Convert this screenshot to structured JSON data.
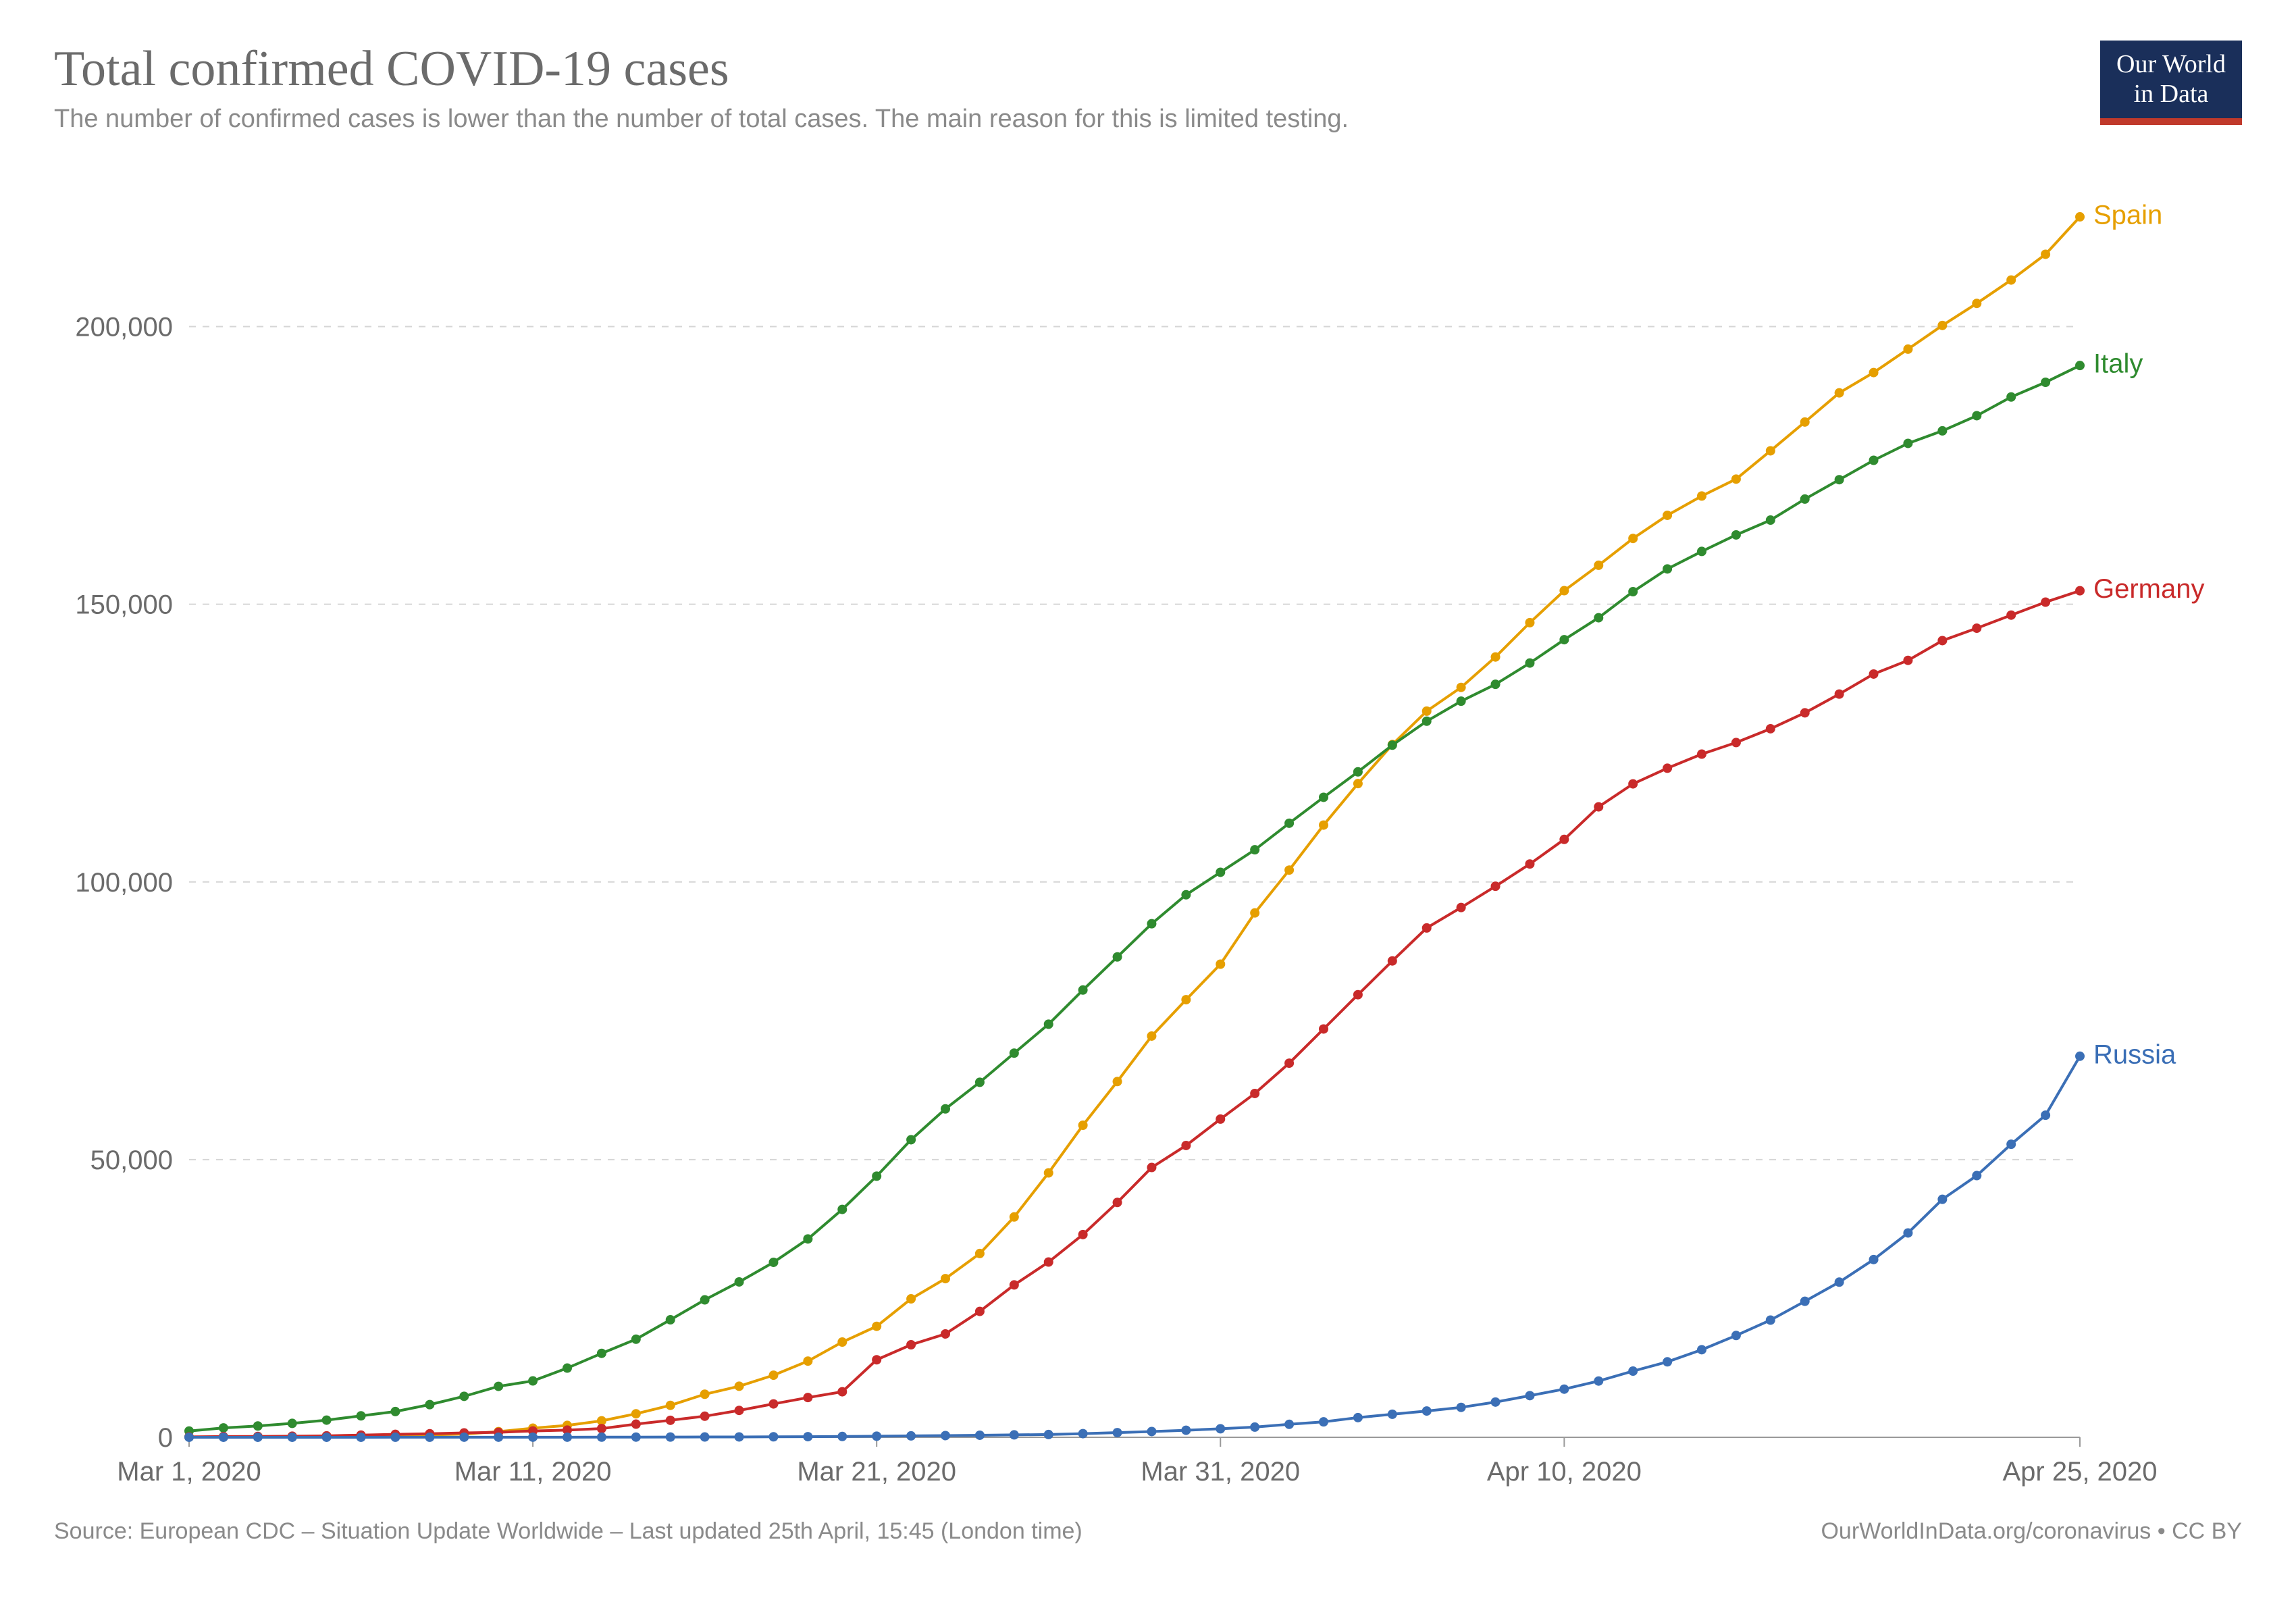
{
  "header": {
    "title": "Total confirmed COVID-19 cases",
    "subtitle": "The number of confirmed cases is lower than the number of total cases. The main reason for this is limited testing.",
    "logo_line1": "Our World",
    "logo_line2": "in Data"
  },
  "footer": {
    "source": "Source: European CDC – Situation Update Worldwide – Last updated 25th April, 15:45 (London time)",
    "attribution": "OurWorldInData.org/coronavirus • CC BY"
  },
  "chart": {
    "type": "line",
    "background_color": "#ffffff",
    "grid_color": "#d6d6d6",
    "axis_color": "#9a9a9a",
    "line_width": 4,
    "marker_radius": 7,
    "y_axis": {
      "min": 0,
      "max": 225000,
      "ticks": [
        {
          "value": 0,
          "label": "0"
        },
        {
          "value": 50000,
          "label": "50,000"
        },
        {
          "value": 100000,
          "label": "100,000"
        },
        {
          "value": 150000,
          "label": "150,000"
        },
        {
          "value": 200000,
          "label": "200,000"
        }
      ],
      "label_fontsize": 40,
      "label_color": "#6b6b6b"
    },
    "x_axis": {
      "min": 0,
      "max": 55,
      "ticks": [
        {
          "value": 0,
          "label": "Mar 1, 2020"
        },
        {
          "value": 10,
          "label": "Mar 11, 2020"
        },
        {
          "value": 20,
          "label": "Mar 21, 2020"
        },
        {
          "value": 30,
          "label": "Mar 31, 2020"
        },
        {
          "value": 40,
          "label": "Apr 10, 2020"
        },
        {
          "value": 55,
          "label": "Apr 25, 2020"
        }
      ],
      "label_fontsize": 40,
      "label_color": "#6b6b6b"
    },
    "series": [
      {
        "name": "Spain",
        "color": "#e69f00",
        "label": "Spain",
        "points": [
          {
            "x": 0,
            "y": 45
          },
          {
            "x": 1,
            "y": 83
          },
          {
            "x": 2,
            "y": 114
          },
          {
            "x": 3,
            "y": 151
          },
          {
            "x": 4,
            "y": 198
          },
          {
            "x": 5,
            "y": 257
          },
          {
            "x": 6,
            "y": 374
          },
          {
            "x": 7,
            "y": 430
          },
          {
            "x": 8,
            "y": 589
          },
          {
            "x": 9,
            "y": 1024
          },
          {
            "x": 10,
            "y": 1639
          },
          {
            "x": 11,
            "y": 2140
          },
          {
            "x": 12,
            "y": 2965
          },
          {
            "x": 13,
            "y": 4231
          },
          {
            "x": 14,
            "y": 5753
          },
          {
            "x": 15,
            "y": 7753
          },
          {
            "x": 16,
            "y": 9191
          },
          {
            "x": 17,
            "y": 11178
          },
          {
            "x": 18,
            "y": 13716
          },
          {
            "x": 19,
            "y": 17147
          },
          {
            "x": 20,
            "y": 19980
          },
          {
            "x": 21,
            "y": 24926
          },
          {
            "x": 22,
            "y": 28572
          },
          {
            "x": 23,
            "y": 33089
          },
          {
            "x": 24,
            "y": 39673
          },
          {
            "x": 25,
            "y": 47610
          },
          {
            "x": 26,
            "y": 56188
          },
          {
            "x": 27,
            "y": 64059
          },
          {
            "x": 28,
            "y": 72248
          },
          {
            "x": 29,
            "y": 78797
          },
          {
            "x": 30,
            "y": 85195
          },
          {
            "x": 31,
            "y": 94417
          },
          {
            "x": 32,
            "y": 102136
          },
          {
            "x": 33,
            "y": 110238
          },
          {
            "x": 34,
            "y": 117710
          },
          {
            "x": 35,
            "y": 124736
          },
          {
            "x": 36,
            "y": 130759
          },
          {
            "x": 37,
            "y": 135032
          },
          {
            "x": 38,
            "y": 140510
          },
          {
            "x": 39,
            "y": 146690
          },
          {
            "x": 40,
            "y": 152446
          },
          {
            "x": 41,
            "y": 157022
          },
          {
            "x": 42,
            "y": 161852
          },
          {
            "x": 43,
            "y": 166019
          },
          {
            "x": 44,
            "y": 169496
          },
          {
            "x": 45,
            "y": 172541
          },
          {
            "x": 46,
            "y": 177633
          },
          {
            "x": 47,
            "y": 182816
          },
          {
            "x": 48,
            "y": 188068
          },
          {
            "x": 49,
            "y": 191726
          },
          {
            "x": 50,
            "y": 195944
          },
          {
            "x": 51,
            "y": 200210
          },
          {
            "x": 52,
            "y": 204178
          },
          {
            "x": 53,
            "y": 208389
          },
          {
            "x": 54,
            "y": 213024
          },
          {
            "x": 55,
            "y": 219764
          }
        ]
      },
      {
        "name": "Italy",
        "color": "#2f8b2f",
        "label": "Italy",
        "points": [
          {
            "x": 0,
            "y": 1128
          },
          {
            "x": 1,
            "y": 1694
          },
          {
            "x": 2,
            "y": 2036
          },
          {
            "x": 3,
            "y": 2502
          },
          {
            "x": 4,
            "y": 3089
          },
          {
            "x": 5,
            "y": 3858
          },
          {
            "x": 6,
            "y": 4636
          },
          {
            "x": 7,
            "y": 5883
          },
          {
            "x": 8,
            "y": 7375
          },
          {
            "x": 9,
            "y": 9172
          },
          {
            "x": 10,
            "y": 10149
          },
          {
            "x": 11,
            "y": 12462
          },
          {
            "x": 12,
            "y": 15113
          },
          {
            "x": 13,
            "y": 17660
          },
          {
            "x": 14,
            "y": 21157
          },
          {
            "x": 15,
            "y": 24747
          },
          {
            "x": 16,
            "y": 27980
          },
          {
            "x": 17,
            "y": 31506
          },
          {
            "x": 18,
            "y": 35713
          },
          {
            "x": 19,
            "y": 41035
          },
          {
            "x": 20,
            "y": 47021
          },
          {
            "x": 21,
            "y": 53578
          },
          {
            "x": 22,
            "y": 59138
          },
          {
            "x": 23,
            "y": 63927
          },
          {
            "x": 24,
            "y": 69176
          },
          {
            "x": 25,
            "y": 74386
          },
          {
            "x": 26,
            "y": 80539
          },
          {
            "x": 27,
            "y": 86498
          },
          {
            "x": 28,
            "y": 92472
          },
          {
            "x": 29,
            "y": 97689
          },
          {
            "x": 30,
            "y": 101739
          },
          {
            "x": 31,
            "y": 105792
          },
          {
            "x": 32,
            "y": 110574
          },
          {
            "x": 33,
            "y": 115242
          },
          {
            "x": 34,
            "y": 119827
          },
          {
            "x": 35,
            "y": 124632
          },
          {
            "x": 36,
            "y": 128948
          },
          {
            "x": 37,
            "y": 132547
          },
          {
            "x": 38,
            "y": 135586
          },
          {
            "x": 39,
            "y": 139422
          },
          {
            "x": 40,
            "y": 143626
          },
          {
            "x": 41,
            "y": 147577
          },
          {
            "x": 42,
            "y": 152271
          },
          {
            "x": 43,
            "y": 156363
          },
          {
            "x": 44,
            "y": 159516
          },
          {
            "x": 45,
            "y": 162488
          },
          {
            "x": 46,
            "y": 165155
          },
          {
            "x": 47,
            "y": 168941
          },
          {
            "x": 48,
            "y": 172434
          },
          {
            "x": 49,
            "y": 175925
          },
          {
            "x": 50,
            "y": 178972
          },
          {
            "x": 51,
            "y": 181228
          },
          {
            "x": 52,
            "y": 183957
          },
          {
            "x": 53,
            "y": 187327
          },
          {
            "x": 54,
            "y": 189973
          },
          {
            "x": 55,
            "y": 192994
          }
        ]
      },
      {
        "name": "Germany",
        "color": "#c92a2a",
        "label": "Germany",
        "points": [
          {
            "x": 0,
            "y": 79
          },
          {
            "x": 1,
            "y": 130
          },
          {
            "x": 2,
            "y": 159
          },
          {
            "x": 3,
            "y": 196
          },
          {
            "x": 4,
            "y": 262
          },
          {
            "x": 5,
            "y": 400
          },
          {
            "x": 6,
            "y": 534
          },
          {
            "x": 7,
            "y": 639
          },
          {
            "x": 8,
            "y": 795
          },
          {
            "x": 9,
            "y": 902
          },
          {
            "x": 10,
            "y": 1139
          },
          {
            "x": 11,
            "y": 1296
          },
          {
            "x": 12,
            "y": 1567
          },
          {
            "x": 13,
            "y": 2369
          },
          {
            "x": 14,
            "y": 3062
          },
          {
            "x": 15,
            "y": 3795
          },
          {
            "x": 16,
            "y": 4838
          },
          {
            "x": 17,
            "y": 6012
          },
          {
            "x": 18,
            "y": 7156
          },
          {
            "x": 19,
            "y": 8198
          },
          {
            "x": 20,
            "y": 13957
          },
          {
            "x": 21,
            "y": 16662
          },
          {
            "x": 22,
            "y": 18610
          },
          {
            "x": 23,
            "y": 22672
          },
          {
            "x": 24,
            "y": 27436
          },
          {
            "x": 25,
            "y": 31554
          },
          {
            "x": 26,
            "y": 36508
          },
          {
            "x": 27,
            "y": 42288
          },
          {
            "x": 28,
            "y": 48582
          },
          {
            "x": 29,
            "y": 52547
          },
          {
            "x": 30,
            "y": 57298
          },
          {
            "x": 31,
            "y": 61913
          },
          {
            "x": 32,
            "y": 67366
          },
          {
            "x": 33,
            "y": 73522
          },
          {
            "x": 34,
            "y": 79696
          },
          {
            "x": 35,
            "y": 85778
          },
          {
            "x": 36,
            "y": 91714
          },
          {
            "x": 37,
            "y": 95391
          },
          {
            "x": 38,
            "y": 99225
          },
          {
            "x": 39,
            "y": 103228
          },
          {
            "x": 40,
            "y": 107663
          },
          {
            "x": 41,
            "y": 113525
          },
          {
            "x": 42,
            "y": 117658
          },
          {
            "x": 43,
            "y": 120479
          },
          {
            "x": 44,
            "y": 123016
          },
          {
            "x": 45,
            "y": 125098
          },
          {
            "x": 46,
            "y": 127584
          },
          {
            "x": 47,
            "y": 130450
          },
          {
            "x": 48,
            "y": 133830
          },
          {
            "x": 49,
            "y": 137439
          },
          {
            "x": 50,
            "y": 139897
          },
          {
            "x": 51,
            "y": 143457
          },
          {
            "x": 52,
            "y": 145694
          },
          {
            "x": 53,
            "y": 148046
          },
          {
            "x": 54,
            "y": 150383
          },
          {
            "x": 55,
            "y": 152438
          }
        ]
      },
      {
        "name": "Russia",
        "color": "#3b6fb6",
        "label": "Russia",
        "points": [
          {
            "x": 0,
            "y": 2
          },
          {
            "x": 1,
            "y": 3
          },
          {
            "x": 2,
            "y": 3
          },
          {
            "x": 3,
            "y": 3
          },
          {
            "x": 4,
            "y": 4
          },
          {
            "x": 5,
            "y": 7
          },
          {
            "x": 6,
            "y": 10
          },
          {
            "x": 7,
            "y": 13
          },
          {
            "x": 8,
            "y": 17
          },
          {
            "x": 9,
            "y": 17
          },
          {
            "x": 10,
            "y": 20
          },
          {
            "x": 11,
            "y": 20
          },
          {
            "x": 12,
            "y": 28
          },
          {
            "x": 13,
            "y": 34
          },
          {
            "x": 14,
            "y": 45
          },
          {
            "x": 15,
            "y": 59
          },
          {
            "x": 16,
            "y": 63
          },
          {
            "x": 17,
            "y": 90
          },
          {
            "x": 18,
            "y": 114
          },
          {
            "x": 19,
            "y": 147
          },
          {
            "x": 20,
            "y": 199
          },
          {
            "x": 21,
            "y": 253
          },
          {
            "x": 22,
            "y": 306
          },
          {
            "x": 23,
            "y": 367
          },
          {
            "x": 24,
            "y": 438
          },
          {
            "x": 25,
            "y": 495
          },
          {
            "x": 26,
            "y": 658
          },
          {
            "x": 27,
            "y": 840
          },
          {
            "x": 28,
            "y": 1036
          },
          {
            "x": 29,
            "y": 1264
          },
          {
            "x": 30,
            "y": 1534
          },
          {
            "x": 31,
            "y": 1836
          },
          {
            "x": 32,
            "y": 2337
          },
          {
            "x": 33,
            "y": 2777
          },
          {
            "x": 34,
            "y": 3548
          },
          {
            "x": 35,
            "y": 4149
          },
          {
            "x": 36,
            "y": 4731
          },
          {
            "x": 37,
            "y": 5389
          },
          {
            "x": 38,
            "y": 6343
          },
          {
            "x": 39,
            "y": 7497
          },
          {
            "x": 40,
            "y": 8672
          },
          {
            "x": 41,
            "y": 10131
          },
          {
            "x": 42,
            "y": 11917
          },
          {
            "x": 43,
            "y": 13584
          },
          {
            "x": 44,
            "y": 15770
          },
          {
            "x": 45,
            "y": 18328
          },
          {
            "x": 46,
            "y": 21102
          },
          {
            "x": 47,
            "y": 24490
          },
          {
            "x": 48,
            "y": 27938
          },
          {
            "x": 49,
            "y": 32008
          },
          {
            "x": 50,
            "y": 36793
          },
          {
            "x": 51,
            "y": 42853
          },
          {
            "x": 52,
            "y": 47121
          },
          {
            "x": 53,
            "y": 52763
          },
          {
            "x": 54,
            "y": 57999
          },
          {
            "x": 55,
            "y": 68622
          }
        ]
      }
    ]
  }
}
